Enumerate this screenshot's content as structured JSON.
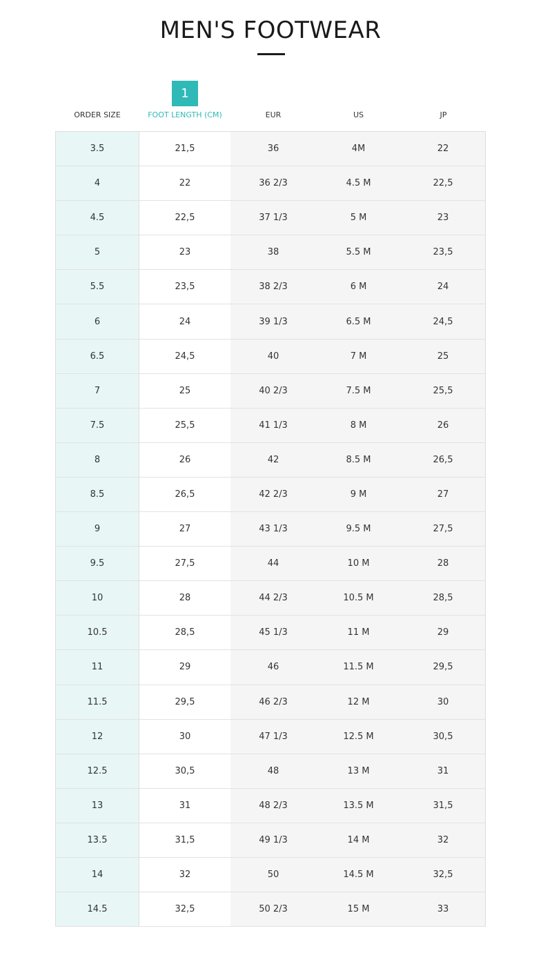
{
  "title": "MEN'S FOOTWEAR",
  "badge": "1",
  "columns": [
    "ORDER SIZE",
    "FOOT LENGTH (CM)",
    "EUR",
    "US",
    "JP"
  ],
  "active_column": 1,
  "accent_color": "#2fb9b7",
  "rows": [
    [
      "3.5",
      "21,5",
      "36",
      "4M",
      "22"
    ],
    [
      "4",
      "22",
      "36 2/3",
      "4.5 M",
      "22,5"
    ],
    [
      "4.5",
      "22,5",
      "37 1/3",
      "5 M",
      "23"
    ],
    [
      "5",
      "23",
      "38",
      "5.5 M",
      "23,5"
    ],
    [
      "5.5",
      "23,5",
      "38 2/3",
      "6 M",
      "24"
    ],
    [
      "6",
      "24",
      "39 1/3",
      "6.5 M",
      "24,5"
    ],
    [
      "6.5",
      "24,5",
      "40",
      "7 M",
      "25"
    ],
    [
      "7",
      "25",
      "40 2/3",
      "7.5 M",
      "25,5"
    ],
    [
      "7.5",
      "25,5",
      "41 1/3",
      "8 M",
      "26"
    ],
    [
      "8",
      "26",
      "42",
      "8.5 M",
      "26,5"
    ],
    [
      "8.5",
      "26,5",
      "42 2/3",
      "9 M",
      "27"
    ],
    [
      "9",
      "27",
      "43 1/3",
      "9.5 M",
      "27,5"
    ],
    [
      "9.5",
      "27,5",
      "44",
      "10 M",
      "28"
    ],
    [
      "10",
      "28",
      "44 2/3",
      "10.5 M",
      "28,5"
    ],
    [
      "10.5",
      "28,5",
      "45 1/3",
      "11 M",
      "29"
    ],
    [
      "11",
      "29",
      "46",
      "11.5 M",
      "29,5"
    ],
    [
      "11.5",
      "29,5",
      "46 2/3",
      "12 M",
      "30"
    ],
    [
      "12",
      "30",
      "47 1/3",
      "12.5 M",
      "30,5"
    ],
    [
      "12.5",
      "30,5",
      "48",
      "13 M",
      "31"
    ],
    [
      "13",
      "31",
      "48 2/3",
      "13.5 M",
      "31,5"
    ],
    [
      "13.5",
      "31,5",
      "49 1/3",
      "14 M",
      "32"
    ],
    [
      "14",
      "32",
      "50",
      "14.5 M",
      "32,5"
    ],
    [
      "14.5",
      "32,5",
      "50 2/3",
      "15 M",
      "33"
    ]
  ]
}
